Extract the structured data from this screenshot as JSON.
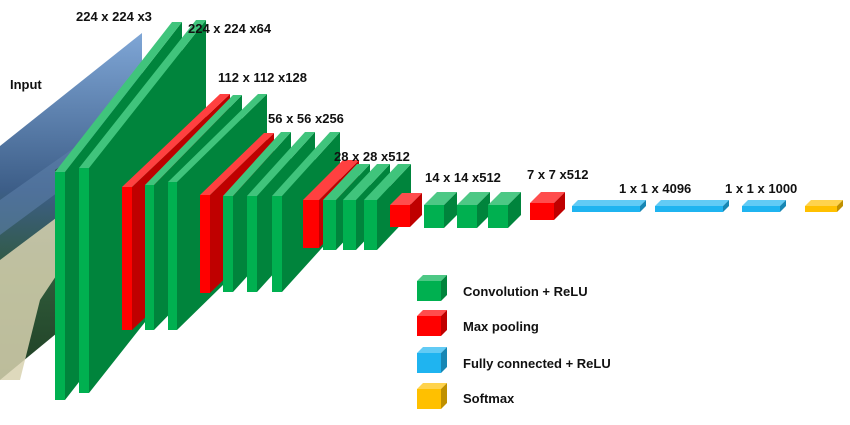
{
  "input_label": "Input",
  "dimension_labels": {
    "input": "224 x 224 x3",
    "conv1": "224 x 224 x64",
    "conv2": "112 x 112 x128",
    "conv3": "56 x 56 x256",
    "conv4": "28 x 28 x512",
    "conv5": "14 x 14 x512",
    "pool5": "7 x 7 x512",
    "fc1": "1 x 1 x 4096",
    "fc3": "1 x 1 x 1000"
  },
  "legend": [
    {
      "key": "conv",
      "label": "Convolution + ReLU",
      "color": "#00B050"
    },
    {
      "key": "pool",
      "label": "Max pooling",
      "color": "#FF0000"
    },
    {
      "key": "fc",
      "label": "Fully connected + ReLU",
      "color": "#1FB4F0"
    },
    {
      "key": "softmax",
      "label": "Softmax",
      "color": "#FFC000"
    }
  ],
  "colors": {
    "conv": "#00B050",
    "pool": "#FF0000",
    "fc": "#1FB4F0",
    "softmax": "#FFC000"
  }
}
